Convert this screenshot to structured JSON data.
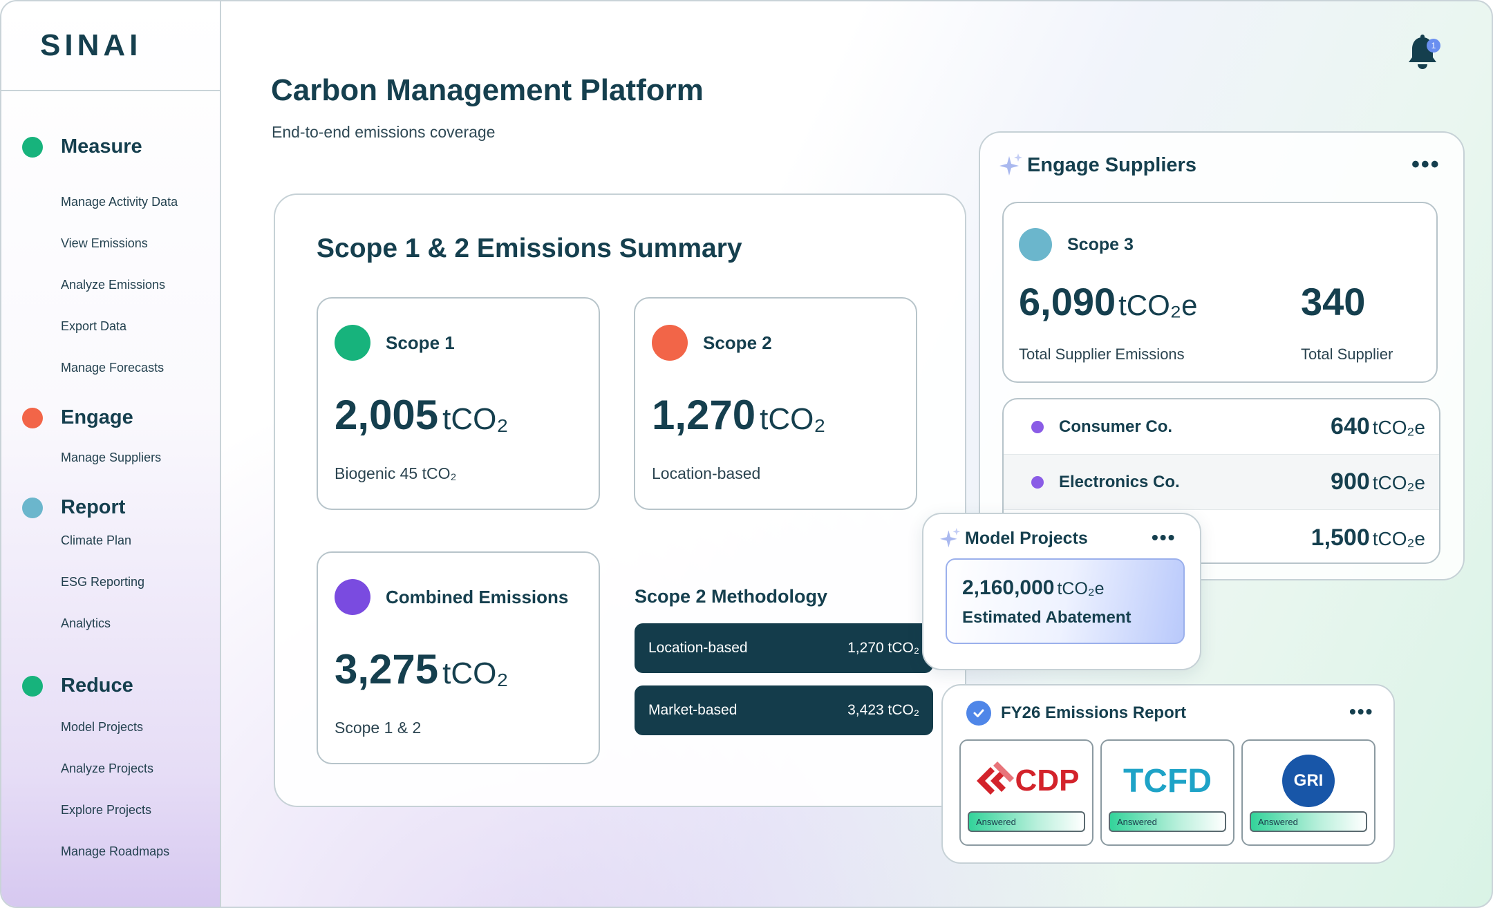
{
  "app": {
    "logo": "SINAI",
    "title": "Carbon Management Platform",
    "subtitle": "End-to-end emissions coverage",
    "notifications_count": "1"
  },
  "colors": {
    "green": "#17b37c",
    "orange": "#f26548",
    "blue": "#6bb6cc",
    "purple": "#7a4be0",
    "dark_teal": "#143c4b"
  },
  "sidebar": {
    "sections": [
      {
        "label": "Measure",
        "items": [
          "Manage Activity Data",
          "View Emissions",
          "Analyze Emissions",
          "Export Data",
          "Manage Forecasts"
        ]
      },
      {
        "label": "Engage",
        "items": [
          "Manage Suppliers"
        ]
      },
      {
        "label": "Report",
        "items": [
          "Climate Plan",
          "ESG Reporting",
          "Analytics"
        ]
      },
      {
        "label": "Reduce",
        "items": [
          "Model Projects",
          "Analyze Projects",
          "Explore Projects",
          "Manage Roadmaps"
        ]
      }
    ]
  },
  "summary": {
    "title": "Scope 1 & 2 Emissions Summary",
    "scope1": {
      "label": "Scope 1",
      "value": "2,005",
      "unit": "tCO₂",
      "note": "Biogenic 45 tCO₂"
    },
    "scope2": {
      "label": "Scope 2",
      "value": "1,270",
      "unit": "tCO₂",
      "note": "Location-based"
    },
    "combined": {
      "label": "Combined Emissions",
      "value": "3,275",
      "unit": "tCO₂",
      "note": "Scope 1 & 2"
    },
    "methodology": {
      "title": "Scope 2 Methodology",
      "rows": [
        {
          "label": "Location-based",
          "value": "1,270 tCO₂"
        },
        {
          "label": "Market-based",
          "value": "3,423 tCO₂"
        }
      ]
    }
  },
  "engage_suppliers": {
    "title": "Engage Suppliers",
    "scope3": {
      "label": "Scope 3",
      "value": "6,090",
      "unit": "tCO₂e",
      "value_note": "Total Supplier Emissions",
      "count": "340",
      "count_note": "Total Supplier"
    },
    "suppliers": [
      {
        "name": "Consumer Co.",
        "value": "640",
        "unit": "tCO₂e"
      },
      {
        "name": "Electronics Co.",
        "value": "900",
        "unit": "tCO₂e"
      },
      {
        "name": "",
        "value": "1,500",
        "unit": "tCO₂e"
      }
    ]
  },
  "model_projects": {
    "title": "Model Projects",
    "value": "2,160,000",
    "unit": "tCO₂e",
    "label": "Estimated Abatement"
  },
  "report": {
    "title": "FY26 Emissions Report",
    "frameworks": [
      {
        "name": "CDP",
        "status": "Answered"
      },
      {
        "name": "TCFD",
        "status": "Answered"
      },
      {
        "name": "GRI",
        "status": "Answered"
      }
    ]
  }
}
